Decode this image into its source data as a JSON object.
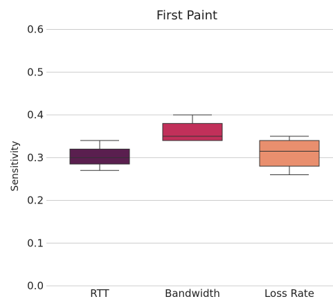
{
  "chart_data": {
    "type": "box",
    "title": "First Paint",
    "xlabel": "",
    "ylabel": "Sensitivity",
    "ylim": [
      0.0,
      0.6
    ],
    "yticks": [
      "0.0",
      "0.1",
      "0.2",
      "0.3",
      "0.4",
      "0.5",
      "0.6"
    ],
    "grid": true,
    "categories": [
      "RTT",
      "Bandwidth",
      "Loss Rate"
    ],
    "boxes": [
      {
        "category": "RTT",
        "min": 0.27,
        "q1": 0.285,
        "median": 0.3,
        "q3": 0.32,
        "max": 0.34,
        "color": "#5a1f4f"
      },
      {
        "category": "Bandwidth",
        "min": 0.34,
        "q1": 0.34,
        "median": 0.35,
        "q3": 0.38,
        "max": 0.4,
        "color": "#c1305a"
      },
      {
        "category": "Loss Rate",
        "min": 0.26,
        "q1": 0.28,
        "median": 0.315,
        "q3": 0.34,
        "max": 0.35,
        "color": "#e98f6e"
      }
    ]
  }
}
